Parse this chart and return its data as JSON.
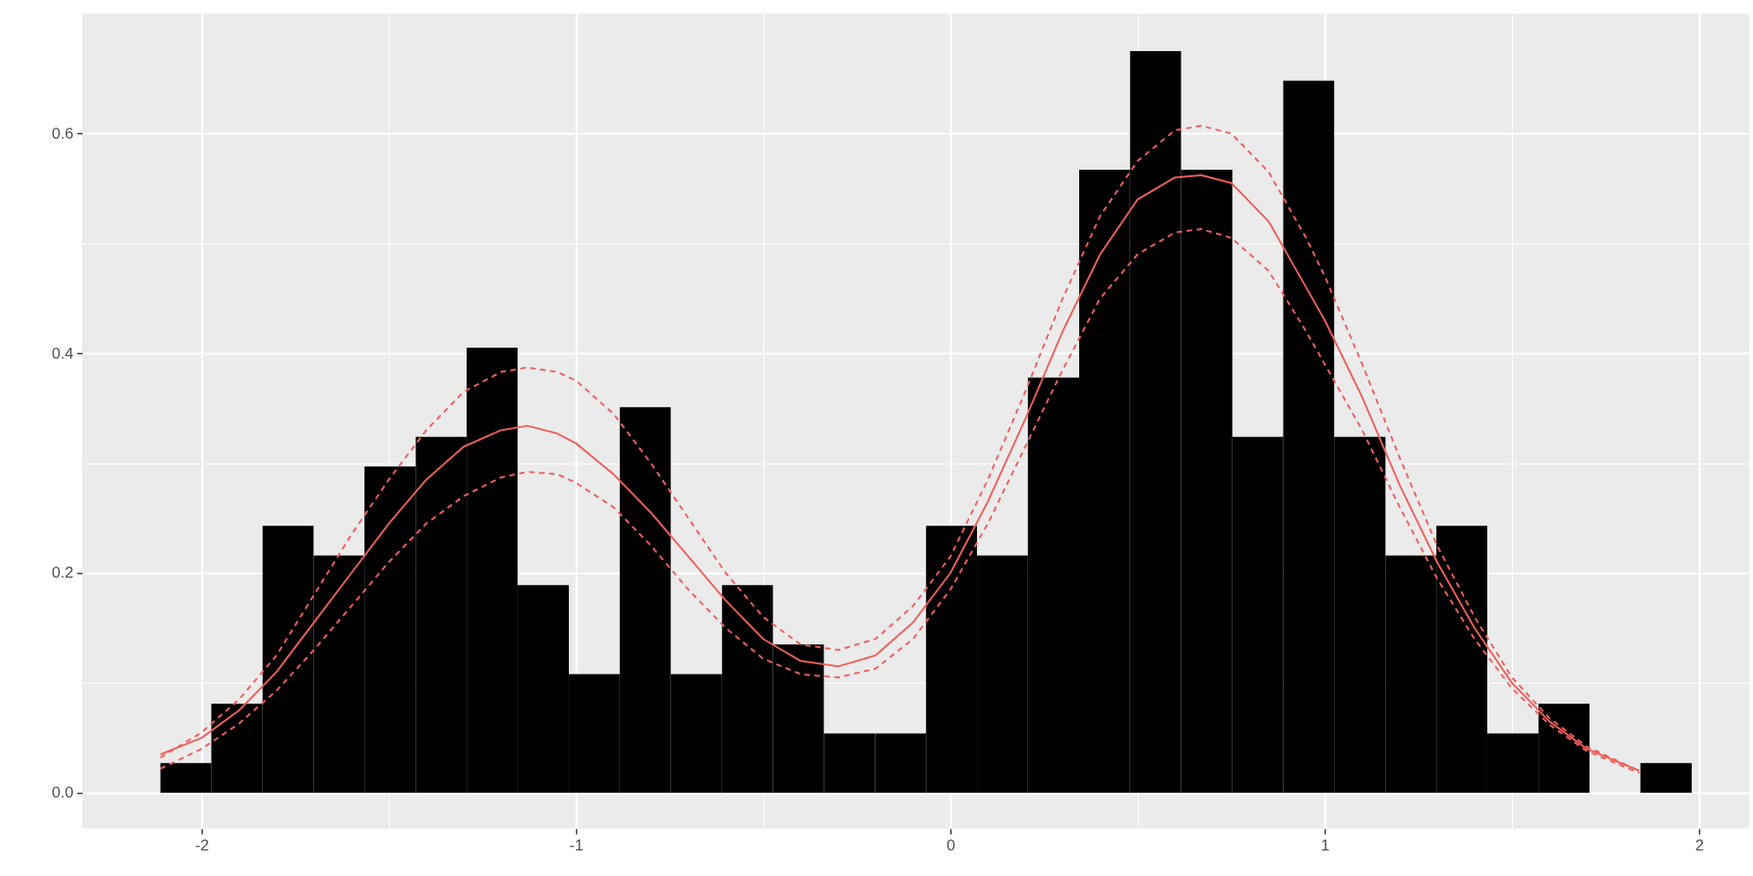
{
  "chart_data": {
    "type": "histogram",
    "bins": [
      -2.11,
      -1.974,
      -1.837,
      -1.701,
      -1.565,
      -1.428,
      -1.292,
      -1.156,
      -1.019,
      -0.883,
      -0.747,
      -0.61,
      -0.474,
      -0.338,
      -0.201,
      -0.065,
      0.071,
      0.207,
      0.344,
      0.48,
      0.616,
      0.753,
      0.889,
      1.025,
      1.162,
      1.298,
      1.434,
      1.571,
      1.707,
      1.843,
      1.98
    ],
    "values": [
      0.027,
      0.081,
      0.243,
      0.216,
      0.297,
      0.324,
      0.405,
      0.189,
      0.108,
      0.351,
      0.108,
      0.189,
      0.135,
      0.054,
      0.054,
      0.243,
      0.216,
      0.378,
      0.567,
      0.675,
      0.567,
      0.324,
      0.648,
      0.324,
      0.216,
      0.243,
      0.054,
      0.081,
      0,
      0.027
    ],
    "color": "#000000",
    "series": [
      {
        "type": "line",
        "color": "#f0605a",
        "line_style": "solid",
        "x": [
          -2.11,
          -2.0,
          -1.9,
          -1.8,
          -1.7,
          -1.6,
          -1.5,
          -1.4,
          -1.3,
          -1.2,
          -1.13,
          -1.05,
          -1.0,
          -0.9,
          -0.8,
          -0.7,
          -0.6,
          -0.5,
          -0.4,
          -0.3,
          -0.2,
          -0.1,
          0,
          0.1,
          0.2,
          0.3,
          0.4,
          0.5,
          0.6,
          0.67,
          0.75,
          0.85,
          0.95,
          1.0,
          1.1,
          1.2,
          1.3,
          1.4,
          1.5,
          1.6,
          1.7,
          1.84
        ],
        "values": [
          0.035,
          0.05,
          0.075,
          0.11,
          0.155,
          0.2,
          0.245,
          0.285,
          0.315,
          0.33,
          0.334,
          0.327,
          0.318,
          0.29,
          0.255,
          0.215,
          0.175,
          0.14,
          0.12,
          0.115,
          0.125,
          0.155,
          0.2,
          0.265,
          0.34,
          0.42,
          0.49,
          0.54,
          0.56,
          0.562,
          0.555,
          0.52,
          0.46,
          0.43,
          0.36,
          0.28,
          0.21,
          0.15,
          0.1,
          0.065,
          0.04,
          0.02
        ]
      },
      {
        "type": "line",
        "color": "#f0605a",
        "line_style": "dashed",
        "x": [
          -2.11,
          -2.0,
          -1.9,
          -1.8,
          -1.7,
          -1.6,
          -1.5,
          -1.4,
          -1.3,
          -1.2,
          -1.13,
          -1.05,
          -1.0,
          -0.9,
          -0.8,
          -0.7,
          -0.6,
          -0.5,
          -0.4,
          -0.3,
          -0.2,
          -0.1,
          0,
          0.1,
          0.2,
          0.3,
          0.4,
          0.5,
          0.6,
          0.67,
          0.75,
          0.85,
          0.95,
          1.0,
          1.1,
          1.2,
          1.3,
          1.4,
          1.5,
          1.6,
          1.7,
          1.84
        ],
        "values": [
          0.032,
          0.055,
          0.085,
          0.125,
          0.18,
          0.235,
          0.285,
          0.33,
          0.365,
          0.383,
          0.387,
          0.383,
          0.375,
          0.345,
          0.3,
          0.25,
          0.2,
          0.16,
          0.135,
          0.13,
          0.14,
          0.17,
          0.215,
          0.285,
          0.365,
          0.45,
          0.525,
          0.575,
          0.603,
          0.607,
          0.6,
          0.565,
          0.505,
          0.47,
          0.39,
          0.305,
          0.225,
          0.16,
          0.105,
          0.068,
          0.042,
          0.02
        ]
      },
      {
        "type": "line",
        "color": "#f0605a",
        "line_style": "dashed",
        "x": [
          -2.11,
          -2.0,
          -1.9,
          -1.8,
          -1.7,
          -1.6,
          -1.5,
          -1.4,
          -1.3,
          -1.2,
          -1.13,
          -1.05,
          -1.0,
          -0.9,
          -0.8,
          -0.7,
          -0.6,
          -0.5,
          -0.4,
          -0.3,
          -0.2,
          -0.1,
          0,
          0.1,
          0.2,
          0.3,
          0.4,
          0.5,
          0.6,
          0.67,
          0.75,
          0.85,
          0.95,
          1.0,
          1.1,
          1.2,
          1.3,
          1.4,
          1.5,
          1.6,
          1.7,
          1.84
        ],
        "values": [
          0.022,
          0.04,
          0.063,
          0.093,
          0.13,
          0.17,
          0.21,
          0.245,
          0.27,
          0.287,
          0.292,
          0.29,
          0.282,
          0.26,
          0.225,
          0.185,
          0.15,
          0.122,
          0.108,
          0.105,
          0.113,
          0.14,
          0.185,
          0.245,
          0.315,
          0.385,
          0.45,
          0.49,
          0.51,
          0.513,
          0.505,
          0.475,
          0.42,
          0.39,
          0.33,
          0.26,
          0.195,
          0.14,
          0.095,
          0.062,
          0.038,
          0.018
        ]
      }
    ],
    "xlim": [
      -2.319,
      2.134
    ],
    "ylim": [
      -0.0325,
      0.709
    ],
    "xticks": [
      {
        "value": -1.5,
        "label": null
      },
      {
        "value": -0.5,
        "label": null
      },
      {
        "value": 0.5,
        "label": null
      },
      {
        "value": 1.5,
        "label": null
      },
      -2,
      -1,
      0,
      1,
      2
    ],
    "yticks": [
      {
        "value": 0.1,
        "label": null
      },
      {
        "value": 0.3,
        "label": null
      },
      {
        "value": 0.5,
        "label": null
      },
      {
        "value": 0,
        "label": "0.0"
      },
      0.2,
      0.4,
      0.6
    ],
    "grid": true
  }
}
